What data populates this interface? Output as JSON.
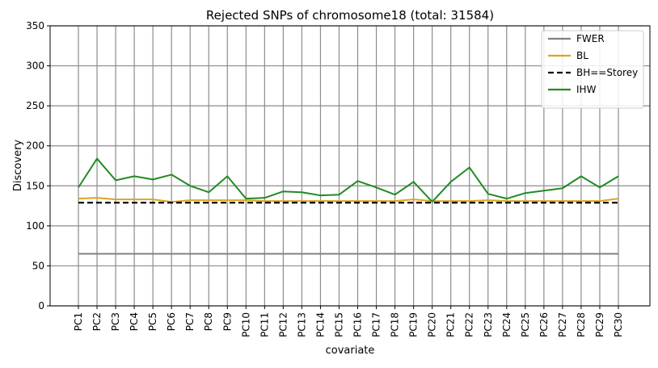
{
  "chart_data": {
    "type": "line",
    "title": "Rejected SNPs of chromosome18 (total: 31584)",
    "xlabel": "covariate",
    "ylabel": "Discovery",
    "categories": [
      "PC1",
      "PC2",
      "PC3",
      "PC4",
      "PC5",
      "PC6",
      "PC7",
      "PC8",
      "PC9",
      "PC10",
      "PC11",
      "PC12",
      "PC13",
      "PC14",
      "PC15",
      "PC16",
      "PC17",
      "PC18",
      "PC19",
      "PC20",
      "PC21",
      "PC22",
      "PC23",
      "PC24",
      "PC25",
      "PC26",
      "PC27",
      "PC28",
      "PC29",
      "PC30"
    ],
    "ylim": [
      0,
      350
    ],
    "yticks": [
      0,
      50,
      100,
      150,
      200,
      250,
      300,
      350
    ],
    "grid": true,
    "legend_position": "top-right",
    "series": [
      {
        "name": "FWER",
        "color": "#808080",
        "style": "solid",
        "values": [
          65,
          65,
          65,
          65,
          65,
          65,
          65,
          65,
          65,
          65,
          65,
          65,
          65,
          65,
          65,
          65,
          65,
          65,
          65,
          65,
          65,
          65,
          65,
          65,
          65,
          65,
          65,
          65,
          65,
          65
        ]
      },
      {
        "name": "BL",
        "color": "#DAA520",
        "style": "solid",
        "values": [
          134,
          135,
          133,
          133,
          133,
          130,
          132,
          132,
          132,
          132,
          131,
          131,
          131,
          131,
          131,
          131,
          131,
          131,
          133,
          131,
          131,
          131,
          132,
          131,
          131,
          131,
          131,
          131,
          131,
          134
        ]
      },
      {
        "name": "BH==Storey",
        "color": "#000000",
        "style": "dashed",
        "values": [
          129,
          129,
          129,
          129,
          129,
          129,
          129,
          129,
          129,
          129,
          129,
          129,
          129,
          129,
          129,
          129,
          129,
          129,
          129,
          129,
          129,
          129,
          129,
          129,
          129,
          129,
          129,
          129,
          129,
          129
        ]
      },
      {
        "name": "IHW",
        "color": "#228B22",
        "style": "solid",
        "values": [
          148,
          184,
          157,
          162,
          158,
          164,
          150,
          142,
          162,
          134,
          135,
          143,
          142,
          138,
          139,
          156,
          148,
          139,
          155,
          130,
          155,
          173,
          140,
          134,
          141,
          144,
          147,
          162,
          148,
          162
        ]
      }
    ]
  }
}
